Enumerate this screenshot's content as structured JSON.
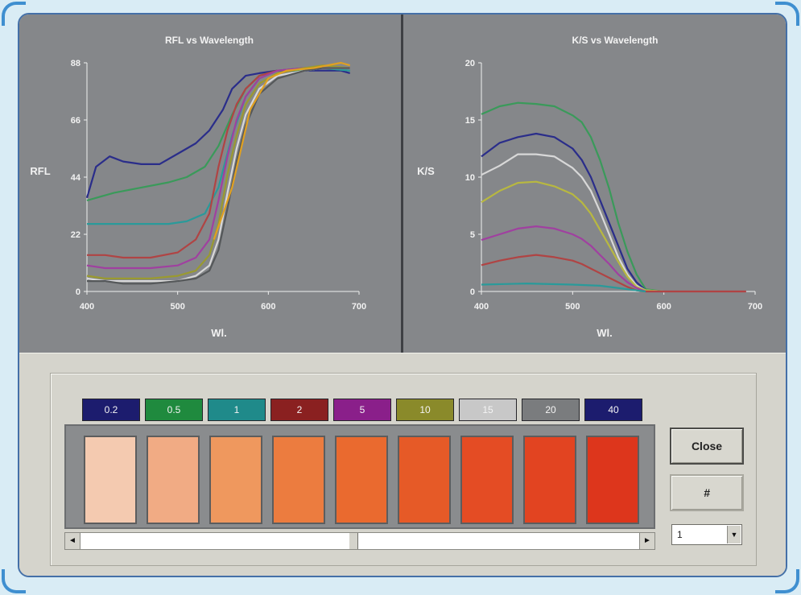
{
  "charts": [
    {
      "type": "line",
      "title": "RFL vs Wavelength",
      "xlabel": "Wl.",
      "ylabel": "RFL",
      "xlim": [
        400,
        700
      ],
      "ylim": [
        0,
        88
      ],
      "x_ticks": [
        "400",
        "500",
        "600",
        "700"
      ],
      "y_ticks": [
        "0",
        "22",
        "44",
        "66",
        "88"
      ],
      "series": [
        {
          "color": "#2a2d8a",
          "x": [
            400,
            410,
            425,
            440,
            460,
            480,
            500,
            520,
            535,
            550,
            560,
            575,
            590,
            610,
            640,
            660,
            680,
            690
          ],
          "y": [
            36,
            48,
            52,
            50,
            49,
            49,
            53,
            57,
            62,
            70,
            78,
            83,
            84,
            85,
            85,
            85,
            85,
            84
          ]
        },
        {
          "color": "#3a9a5a",
          "x": [
            400,
            430,
            460,
            490,
            510,
            530,
            545,
            560,
            575,
            590,
            610,
            640,
            660,
            690
          ],
          "y": [
            35,
            38,
            40,
            42,
            44,
            48,
            56,
            68,
            78,
            83,
            85,
            85,
            86,
            85
          ]
        },
        {
          "color": "#2a9a9a",
          "x": [
            400,
            430,
            460,
            490,
            510,
            530,
            545,
            560,
            575,
            590,
            610,
            640,
            660,
            690
          ],
          "y": [
            26,
            26,
            26,
            26,
            27,
            30,
            40,
            60,
            75,
            82,
            85,
            86,
            86,
            85
          ]
        },
        {
          "color": "#b04444",
          "x": [
            400,
            420,
            440,
            470,
            500,
            520,
            535,
            545,
            555,
            565,
            575,
            590,
            610,
            640,
            660,
            690
          ],
          "y": [
            14,
            14,
            13,
            13,
            15,
            20,
            30,
            48,
            62,
            72,
            78,
            83,
            85,
            86,
            86,
            86
          ]
        },
        {
          "color": "#a040a0",
          "x": [
            400,
            420,
            440,
            470,
            500,
            520,
            535,
            545,
            555,
            565,
            575,
            590,
            610,
            640,
            660,
            690
          ],
          "y": [
            10,
            9,
            9,
            9,
            10,
            13,
            20,
            35,
            52,
            66,
            75,
            82,
            85,
            86,
            86,
            86
          ]
        },
        {
          "color": "#9a9a30",
          "x": [
            400,
            420,
            440,
            470,
            500,
            520,
            535,
            545,
            555,
            565,
            575,
            590,
            610,
            640,
            660,
            690
          ],
          "y": [
            6,
            5,
            5,
            5,
            6,
            8,
            14,
            26,
            45,
            60,
            72,
            80,
            84,
            86,
            87,
            86
          ]
        },
        {
          "color": "#d8d8d8",
          "x": [
            400,
            420,
            440,
            470,
            500,
            520,
            535,
            545,
            555,
            565,
            575,
            590,
            610,
            640,
            660,
            690
          ],
          "y": [
            5,
            4,
            4,
            4,
            4,
            6,
            10,
            20,
            38,
            55,
            68,
            78,
            83,
            85,
            86,
            86
          ]
        },
        {
          "color": "#55585a",
          "x": [
            400,
            420,
            440,
            470,
            500,
            520,
            535,
            545,
            555,
            565,
            575,
            590,
            610,
            640,
            660,
            690
          ],
          "y": [
            4,
            4,
            3,
            3,
            4,
            5,
            8,
            16,
            32,
            50,
            64,
            76,
            82,
            85,
            86,
            86
          ]
        },
        {
          "color": "#e0a020",
          "x": [
            540,
            560,
            580,
            600,
            620,
            650,
            680,
            690
          ],
          "y": [
            20,
            40,
            70,
            82,
            85,
            86,
            88,
            87
          ]
        }
      ]
    },
    {
      "type": "line",
      "title": "K/S vs Wavelength",
      "xlabel": "Wl.",
      "ylabel": "K/S",
      "xlim": [
        400,
        700
      ],
      "ylim": [
        0,
        20
      ],
      "x_ticks": [
        "400",
        "500",
        "600",
        "700"
      ],
      "y_ticks": [
        "0",
        "5",
        "10",
        "15",
        "20"
      ],
      "series": [
        {
          "color": "#3a9a5a",
          "x": [
            400,
            420,
            440,
            460,
            480,
            500,
            510,
            520,
            530,
            540,
            550,
            560,
            570,
            580,
            600,
            650,
            690
          ],
          "y": [
            15.5,
            16.2,
            16.5,
            16.4,
            16.2,
            15.4,
            14.8,
            13.5,
            11.5,
            9,
            6,
            3.5,
            1.5,
            0.2,
            0,
            0,
            0
          ]
        },
        {
          "color": "#2a2d8a",
          "x": [
            400,
            420,
            440,
            460,
            480,
            500,
            510,
            520,
            530,
            540,
            550,
            560,
            570,
            580,
            600,
            650,
            690
          ],
          "y": [
            11.8,
            13,
            13.5,
            13.8,
            13.5,
            12.5,
            11.5,
            10,
            8,
            6,
            4,
            2,
            0.8,
            0.1,
            0,
            0,
            0
          ]
        },
        {
          "color": "#d8d8d8",
          "x": [
            400,
            420,
            440,
            460,
            480,
            500,
            510,
            520,
            530,
            540,
            550,
            560,
            570,
            580,
            600,
            650,
            690
          ],
          "y": [
            10.2,
            11,
            12,
            12,
            11.8,
            10.8,
            10,
            8.8,
            7,
            5,
            3,
            1.5,
            0.5,
            0.1,
            0,
            0,
            0
          ]
        },
        {
          "color": "#b8b840",
          "x": [
            400,
            420,
            440,
            460,
            480,
            500,
            510,
            520,
            530,
            540,
            550,
            560,
            570,
            580,
            600,
            650,
            690
          ],
          "y": [
            7.8,
            8.8,
            9.5,
            9.6,
            9.2,
            8.5,
            7.8,
            6.8,
            5.4,
            4,
            2.6,
            1.3,
            0.4,
            0.1,
            0,
            0,
            0
          ]
        },
        {
          "color": "#a040a0",
          "x": [
            400,
            420,
            440,
            460,
            480,
            500,
            510,
            520,
            530,
            540,
            550,
            560,
            570,
            580,
            600,
            650,
            690
          ],
          "y": [
            4.5,
            5,
            5.5,
            5.7,
            5.5,
            5,
            4.6,
            4,
            3.2,
            2.4,
            1.5,
            0.8,
            0.3,
            0,
            0,
            0,
            0
          ]
        },
        {
          "color": "#b04444",
          "x": [
            400,
            420,
            440,
            460,
            480,
            500,
            510,
            520,
            530,
            540,
            550,
            560,
            570,
            580,
            600,
            650,
            690
          ],
          "y": [
            2.3,
            2.7,
            3,
            3.2,
            3,
            2.7,
            2.4,
            2,
            1.6,
            1.2,
            0.8,
            0.4,
            0.1,
            0,
            0,
            0,
            0
          ]
        },
        {
          "color": "#2a9a9a",
          "x": [
            400,
            450,
            500,
            530,
            560,
            580
          ],
          "y": [
            0.6,
            0.7,
            0.6,
            0.5,
            0.2,
            0
          ]
        }
      ]
    }
  ],
  "concentrations": [
    {
      "label": "0.2",
      "bg": "#1c1c6e"
    },
    {
      "label": "0.5",
      "bg": "#1f8a3e"
    },
    {
      "label": "1",
      "bg": "#1f8a8a"
    },
    {
      "label": "2",
      "bg": "#8a2020"
    },
    {
      "label": "5",
      "bg": "#8a1f8a"
    },
    {
      "label": "10",
      "bg": "#8a8a2a"
    },
    {
      "label": "15",
      "bg": "#c8c8c8"
    },
    {
      "label": "20",
      "bg": "#7a7c7e"
    },
    {
      "label": "40",
      "bg": "#1c1c6e"
    }
  ],
  "swatches": [
    "#f4cab0",
    "#f1ab84",
    "#ef985e",
    "#ec7c3f",
    "#ea6a2f",
    "#e65a27",
    "#e44c24",
    "#e24421",
    "#dd361c"
  ],
  "buttons": {
    "close": "Close",
    "hash": "#"
  },
  "select": {
    "value": "1"
  },
  "icons": {
    "scroll_left": "◄",
    "scroll_right": "►",
    "dropdown": "▼"
  }
}
